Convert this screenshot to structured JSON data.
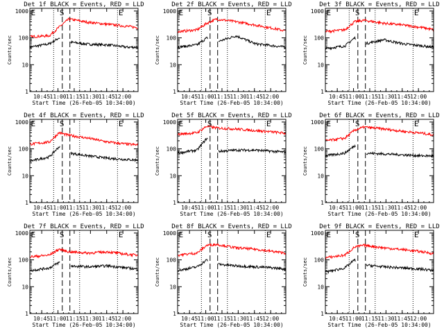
{
  "figure": {
    "common": {
      "xlabel": "Start Time (26-Feb-05 10:34:00)",
      "ylabel": "Counts/sec",
      "x_tick_labels": [
        "10:45",
        "11:00",
        "11:15",
        "11:30",
        "11:45",
        "12:00"
      ],
      "y_tick_labels": [
        "1",
        "10",
        "100",
        "1000"
      ],
      "markers": [
        "E",
        "S",
        "E"
      ],
      "colors": {
        "events": "#000000",
        "lld": "#ff0000",
        "axes": "#000000"
      }
    }
  },
  "chart_data": [
    {
      "type": "line",
      "title": "Det 1f BLACK = Events, RED = LLD",
      "xlabel": "Start Time (26-Feb-05 10:34:00)",
      "ylabel": "Counts/sec",
      "x_minutes_after_10_34": [
        0,
        18,
        27,
        36,
        54,
        72,
        90,
        100
      ],
      "ylim": [
        1,
        1000
      ],
      "yscale": "log",
      "dotted_lines_minutes": [
        22,
        46,
        81
      ],
      "dashed_lines_minutes": [
        30,
        37
      ],
      "series": [
        {
          "name": "Events",
          "color": "#000000",
          "values": [
            45,
            60,
            100,
            70,
            58,
            55,
            45,
            45
          ]
        },
        {
          "name": "LLD",
          "color": "#ff0000",
          "values": [
            110,
            120,
            250,
            500,
            380,
            320,
            270,
            240
          ]
        }
      ]
    },
    {
      "type": "line",
      "title": "Det 2f BLACK = Events, RED = LLD",
      "xlabel": "Start Time (26-Feb-05 10:34:00)",
      "ylabel": "Counts/sec",
      "x_minutes_after_10_34": [
        0,
        18,
        27,
        36,
        54,
        72,
        90,
        100
      ],
      "ylim": [
        1,
        1000
      ],
      "yscale": "log",
      "dotted_lines_minutes": [
        22,
        46,
        81
      ],
      "dashed_lines_minutes": [
        30,
        37
      ],
      "series": [
        {
          "name": "Events",
          "color": "#000000",
          "values": [
            45,
            55,
            100,
            70,
            120,
            60,
            50,
            45
          ]
        },
        {
          "name": "LLD",
          "color": "#ff0000",
          "values": [
            170,
            200,
            350,
            500,
            400,
            300,
            220,
            180
          ]
        }
      ]
    },
    {
      "type": "line",
      "title": "Det 3f BLACK = Events, RED = LLD",
      "xlabel": "Start Time (26-Feb-05 10:34:00)",
      "ylabel": "Counts/sec",
      "x_minutes_after_10_34": [
        0,
        18,
        27,
        36,
        54,
        72,
        90,
        100
      ],
      "ylim": [
        1,
        1000
      ],
      "yscale": "log",
      "dotted_lines_minutes": [
        22,
        46,
        81
      ],
      "dashed_lines_minutes": [
        30,
        37
      ],
      "series": [
        {
          "name": "Events",
          "color": "#000000",
          "values": [
            40,
            50,
            100,
            60,
            85,
            60,
            50,
            45
          ]
        },
        {
          "name": "LLD",
          "color": "#ff0000",
          "values": [
            170,
            200,
            400,
            450,
            350,
            300,
            240,
            200
          ]
        }
      ]
    },
    {
      "type": "line",
      "title": "Det 4f BLACK = Events, RED = LLD",
      "xlabel": "Start Time (26-Feb-05 10:34:00)",
      "ylabel": "Counts/sec",
      "x_minutes_after_10_34": [
        0,
        18,
        27,
        36,
        54,
        72,
        90,
        100
      ],
      "ylim": [
        1,
        1000
      ],
      "yscale": "log",
      "dotted_lines_minutes": [
        22,
        46,
        81
      ],
      "dashed_lines_minutes": [
        30,
        37
      ],
      "series": [
        {
          "name": "Events",
          "color": "#000000",
          "values": [
            35,
            50,
            120,
            70,
            55,
            45,
            40,
            38
          ]
        },
        {
          "name": "LLD",
          "color": "#ff0000",
          "values": [
            150,
            180,
            400,
            320,
            250,
            180,
            150,
            140
          ]
        }
      ]
    },
    {
      "type": "line",
      "title": "Det 5f BLACK = Events, RED = LLD",
      "xlabel": "Start Time (26-Feb-05 10:34:00)",
      "ylabel": "Counts/sec",
      "x_minutes_after_10_34": [
        0,
        18,
        27,
        36,
        54,
        72,
        90,
        100
      ],
      "ylim": [
        1,
        1000
      ],
      "yscale": "log",
      "dotted_lines_minutes": [
        22,
        46,
        81
      ],
      "dashed_lines_minutes": [
        30,
        37
      ],
      "series": [
        {
          "name": "Events",
          "color": "#000000",
          "values": [
            70,
            90,
            250,
            80,
            90,
            90,
            80,
            75
          ]
        },
        {
          "name": "LLD",
          "color": "#ff0000",
          "values": [
            350,
            400,
            700,
            600,
            550,
            480,
            420,
            380
          ]
        }
      ]
    },
    {
      "type": "line",
      "title": "Det 6f BLACK = Events, RED = LLD",
      "xlabel": "Start Time (26-Feb-05 10:34:00)",
      "ylabel": "Counts/sec",
      "x_minutes_after_10_34": [
        0,
        18,
        27,
        36,
        54,
        72,
        90,
        100
      ],
      "ylim": [
        1,
        1000
      ],
      "yscale": "log",
      "dotted_lines_minutes": [
        22,
        46,
        81
      ],
      "dashed_lines_minutes": [
        30,
        37
      ],
      "series": [
        {
          "name": "Events",
          "color": "#000000",
          "values": [
            55,
            70,
            130,
            70,
            65,
            60,
            55,
            55
          ]
        },
        {
          "name": "LLD",
          "color": "#ff0000",
          "values": [
            200,
            250,
            500,
            650,
            550,
            450,
            380,
            330
          ]
        }
      ]
    },
    {
      "type": "line",
      "title": "Det 7f BLACK = Events, RED = LLD",
      "xlabel": "Start Time (26-Feb-05 10:34:00)",
      "ylabel": "Counts/sec",
      "x_minutes_after_10_34": [
        0,
        18,
        27,
        36,
        54,
        72,
        90,
        100
      ],
      "ylim": [
        1,
        1000
      ],
      "yscale": "log",
      "dotted_lines_minutes": [
        22,
        46,
        81
      ],
      "dashed_lines_minutes": [
        30,
        37
      ],
      "series": [
        {
          "name": "Events",
          "color": "#000000",
          "values": [
            40,
            50,
            80,
            60,
            55,
            60,
            50,
            45
          ]
        },
        {
          "name": "LLD",
          "color": "#ff0000",
          "values": [
            130,
            150,
            250,
            200,
            180,
            200,
            160,
            150
          ]
        }
      ]
    },
    {
      "type": "line",
      "title": "Det 8f BLACK = Events, RED = LLD",
      "xlabel": "Start Time (26-Feb-05 10:34:00)",
      "ylabel": "Counts/sec",
      "x_minutes_after_10_34": [
        0,
        18,
        27,
        36,
        54,
        72,
        90,
        100
      ],
      "ylim": [
        1,
        1000
      ],
      "yscale": "log",
      "dotted_lines_minutes": [
        22,
        46,
        81
      ],
      "dashed_lines_minutes": [
        30,
        37
      ],
      "series": [
        {
          "name": "Events",
          "color": "#000000",
          "values": [
            40,
            55,
            100,
            70,
            60,
            55,
            50,
            45
          ]
        },
        {
          "name": "LLD",
          "color": "#ff0000",
          "values": [
            150,
            180,
            350,
            380,
            280,
            250,
            200,
            180
          ]
        }
      ]
    },
    {
      "type": "line",
      "title": "Det 9f BLACK = Events, RED = LLD",
      "xlabel": "Start Time (26-Feb-05 10:34:00)",
      "ylabel": "Counts/sec",
      "x_minutes_after_10_34": [
        0,
        18,
        27,
        36,
        54,
        72,
        90,
        100
      ],
      "ylim": [
        1,
        1000
      ],
      "yscale": "log",
      "dotted_lines_minutes": [
        22,
        46,
        81
      ],
      "dashed_lines_minutes": [
        30,
        37
      ],
      "series": [
        {
          "name": "Events",
          "color": "#000000",
          "values": [
            35,
            50,
            100,
            65,
            55,
            50,
            45,
            40
          ]
        },
        {
          "name": "LLD",
          "color": "#ff0000",
          "values": [
            120,
            150,
            300,
            350,
            280,
            240,
            200,
            170
          ]
        }
      ]
    }
  ]
}
